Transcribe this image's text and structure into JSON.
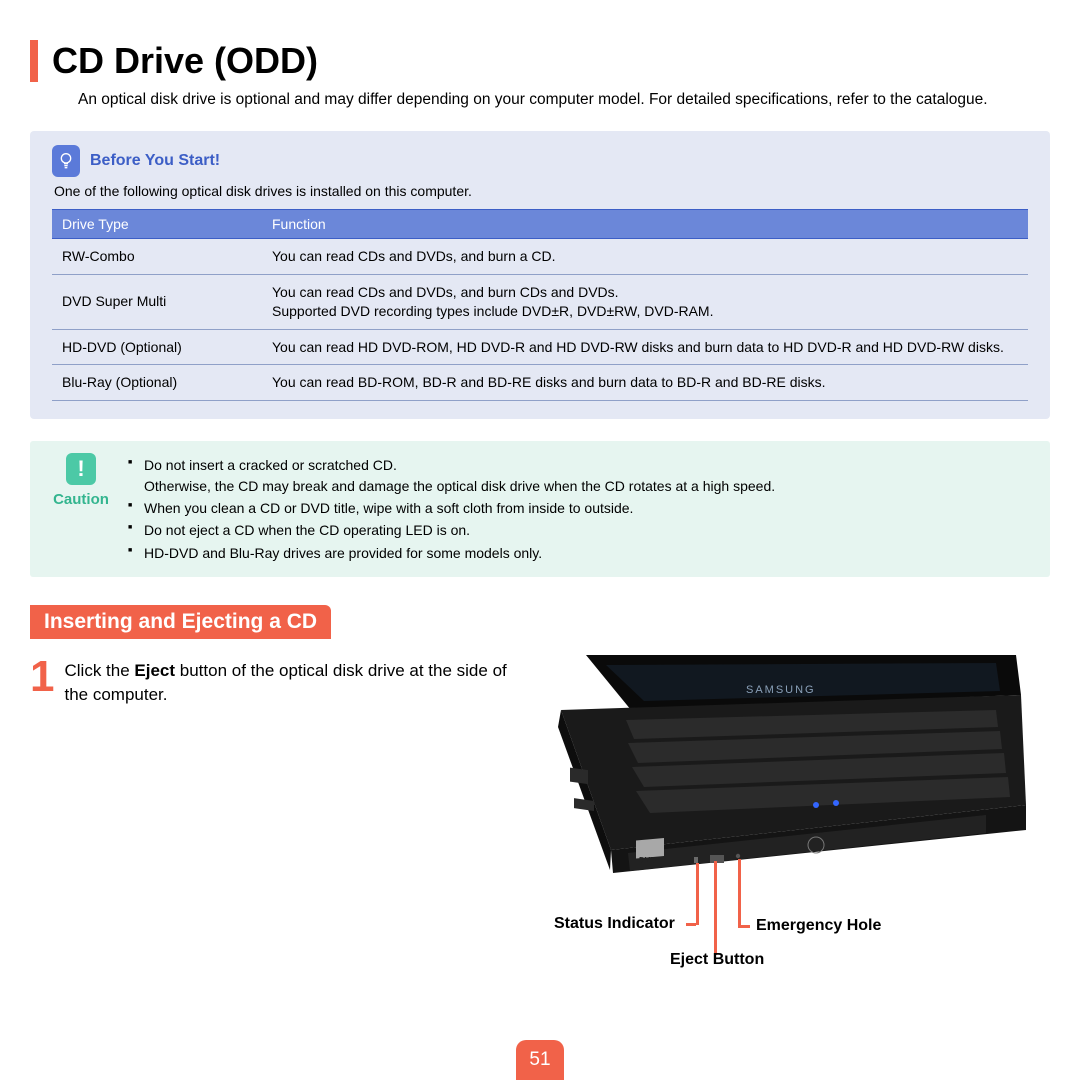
{
  "colors": {
    "accent": "#F16249",
    "info_bg": "#E4E8F4",
    "info_header_bg": "#6B87D9",
    "info_icon_bg": "#5B7AD9",
    "info_title": "#3C5EC6",
    "caution_bg": "#E6F5F0",
    "caution_icon_bg": "#4CC9A6",
    "caution_text": "#33B58F"
  },
  "title": "CD Drive (ODD)",
  "intro": "An optical disk drive is optional and may differ depending on your computer model. For detailed specifications, refer to the catalogue.",
  "info": {
    "heading": "Before You Start!",
    "sub": "One of the following optical disk drives is installed on this computer.",
    "table": {
      "columns": [
        "Drive Type",
        "Function"
      ],
      "rows": [
        [
          "RW-Combo",
          "You can read CDs and DVDs, and burn a CD."
        ],
        [
          "DVD Super Multi",
          "You can read CDs and DVDs, and burn CDs and DVDs.\nSupported DVD recording types include DVD±R, DVD±RW, DVD-RAM."
        ],
        [
          "HD-DVD (Optional)",
          "You can read HD DVD-ROM, HD DVD-R and HD DVD-RW disks and burn data to HD DVD-R and HD DVD-RW disks."
        ],
        [
          "Blu-Ray (Optional)",
          "You can read BD-ROM, BD-R and BD-RE disks and burn data to BD-R and BD-RE disks."
        ]
      ]
    }
  },
  "caution": {
    "label": "Caution",
    "items": [
      "Do not insert a cracked or scratched CD.\nOtherwise, the CD may break and damage the optical disk drive when the CD rotates at a high speed.",
      "When you clean a CD or DVD title, wipe with a soft cloth from inside to outside.",
      "Do not eject a CD when the CD operating LED is on.",
      "HD-DVD and Blu-Ray drives are provided for some models only."
    ]
  },
  "section": {
    "badge": "Inserting and Ejecting a CD",
    "step_number": "1",
    "step_text_pre": "Click the ",
    "step_text_bold": "Eject",
    "step_text_post": " button of the optical disk drive at the side of the computer."
  },
  "diagram": {
    "labels": {
      "status": "Status Indicator",
      "eject": "Eject Button",
      "emergency": "Emergency Hole"
    },
    "brand": "SAMSUNG",
    "dvd_badge": "DVD"
  },
  "page_number": "51"
}
